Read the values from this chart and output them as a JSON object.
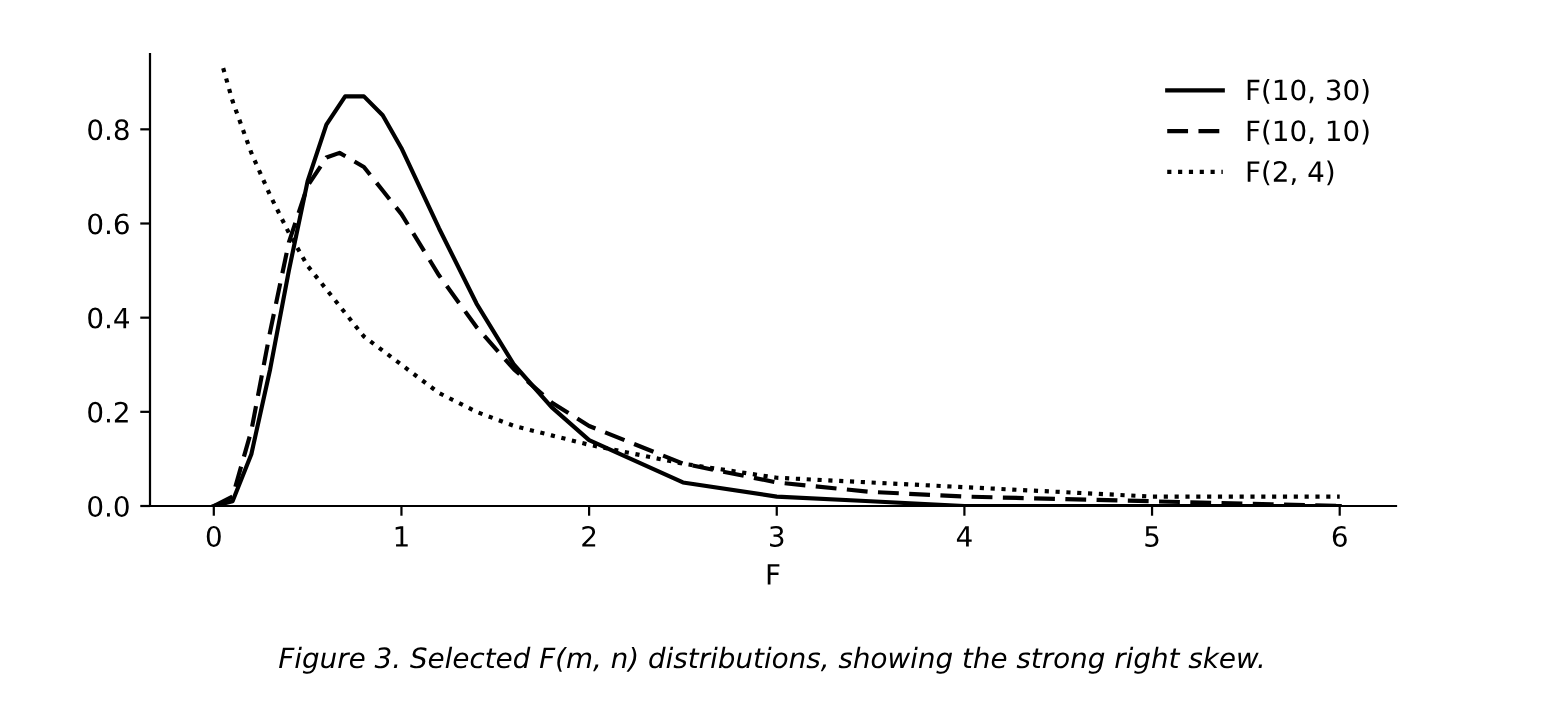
{
  "chart_data": {
    "type": "line",
    "xlabel": "F",
    "annotations": [
      "Figure 3. Selected F(m, n) distributions, showing the strong right skew."
    ],
    "series": [
      {
        "name": "F(10, 30)",
        "color": "#000000",
        "line_style": "solid",
        "x": [
          0,
          0.1,
          0.2,
          0.3,
          0.4,
          0.5,
          0.6,
          0.7,
          0.75,
          0.8,
          0.9,
          1.0,
          1.2,
          1.4,
          1.6,
          1.8,
          2.0,
          2.5,
          3.0,
          3.5,
          4.0,
          5.0,
          6.0
        ],
        "values": [
          0,
          0.01,
          0.11,
          0.29,
          0.5,
          0.69,
          0.81,
          0.87,
          0.87,
          0.87,
          0.83,
          0.76,
          0.59,
          0.43,
          0.3,
          0.21,
          0.14,
          0.05,
          0.02,
          0.01,
          0.0,
          0.0,
          0.0
        ]
      },
      {
        "name": "F(10, 10)",
        "color": "#000000",
        "line_style": "dashed",
        "x": [
          0,
          0.1,
          0.2,
          0.3,
          0.4,
          0.5,
          0.6,
          0.67,
          0.8,
          0.9,
          1.0,
          1.2,
          1.4,
          1.6,
          1.8,
          2.0,
          2.5,
          3.0,
          3.5,
          4.0,
          5.0,
          6.0
        ],
        "values": [
          0,
          0.02,
          0.16,
          0.37,
          0.56,
          0.68,
          0.74,
          0.75,
          0.72,
          0.67,
          0.62,
          0.49,
          0.38,
          0.29,
          0.22,
          0.17,
          0.09,
          0.05,
          0.03,
          0.02,
          0.01,
          0.0
        ]
      },
      {
        "name": "F(2, 4)",
        "color": "#000000",
        "line_style": "dotted",
        "x": [
          0.05,
          0.1,
          0.2,
          0.3,
          0.4,
          0.5,
          0.6,
          0.8,
          1.0,
          1.2,
          1.4,
          1.6,
          1.8,
          2.0,
          2.5,
          3.0,
          3.5,
          4.0,
          5.0,
          6.0
        ],
        "values": [
          0.93,
          0.86,
          0.75,
          0.66,
          0.58,
          0.51,
          0.46,
          0.36,
          0.3,
          0.24,
          0.2,
          0.17,
          0.15,
          0.13,
          0.09,
          0.06,
          0.05,
          0.04,
          0.02,
          0.02
        ]
      }
    ],
    "xlim": [
      -0.34,
      6.3
    ],
    "ylim": [
      0,
      0.96
    ],
    "xticks": [
      0,
      1,
      2,
      3,
      4,
      5,
      6
    ],
    "yticks": [
      {
        "value": 0,
        "label": "0.0"
      },
      0.2,
      0.4,
      0.6,
      0.8
    ],
    "grid": false,
    "legend": "top right"
  }
}
